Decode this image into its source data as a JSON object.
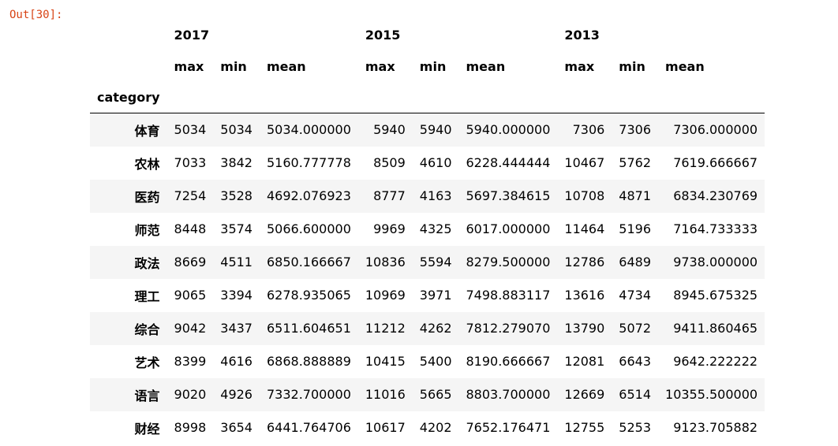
{
  "prompt": "Out[30]:",
  "table": {
    "years": [
      "2017",
      "2015",
      "2013"
    ],
    "stats": [
      "max",
      "min",
      "mean"
    ],
    "index_name": "category",
    "rows": [
      {
        "label": "体育",
        "cells": [
          "5034",
          "5034",
          "5034.000000",
          "5940",
          "5940",
          "5940.000000",
          "7306",
          "7306",
          "7306.000000"
        ]
      },
      {
        "label": "农林",
        "cells": [
          "7033",
          "3842",
          "5160.777778",
          "8509",
          "4610",
          "6228.444444",
          "10467",
          "5762",
          "7619.666667"
        ]
      },
      {
        "label": "医药",
        "cells": [
          "7254",
          "3528",
          "4692.076923",
          "8777",
          "4163",
          "5697.384615",
          "10708",
          "4871",
          "6834.230769"
        ]
      },
      {
        "label": "师范",
        "cells": [
          "8448",
          "3574",
          "5066.600000",
          "9969",
          "4325",
          "6017.000000",
          "11464",
          "5196",
          "7164.733333"
        ]
      },
      {
        "label": "政法",
        "cells": [
          "8669",
          "4511",
          "6850.166667",
          "10836",
          "5594",
          "8279.500000",
          "12786",
          "6489",
          "9738.000000"
        ]
      },
      {
        "label": "理工",
        "cells": [
          "9065",
          "3394",
          "6278.935065",
          "10969",
          "3971",
          "7498.883117",
          "13616",
          "4734",
          "8945.675325"
        ]
      },
      {
        "label": "综合",
        "cells": [
          "9042",
          "3437",
          "6511.604651",
          "11212",
          "4262",
          "7812.279070",
          "13790",
          "5072",
          "9411.860465"
        ]
      },
      {
        "label": "艺术",
        "cells": [
          "8399",
          "4616",
          "6868.888889",
          "10415",
          "5400",
          "8190.666667",
          "12081",
          "6643",
          "9642.222222"
        ]
      },
      {
        "label": "语言",
        "cells": [
          "9020",
          "4926",
          "7332.700000",
          "11016",
          "5665",
          "8803.700000",
          "12669",
          "6514",
          "10355.500000"
        ]
      },
      {
        "label": "财经",
        "cells": [
          "8998",
          "3654",
          "6441.764706",
          "10617",
          "4202",
          "7652.176471",
          "12755",
          "5253",
          "9123.705882"
        ]
      }
    ]
  }
}
